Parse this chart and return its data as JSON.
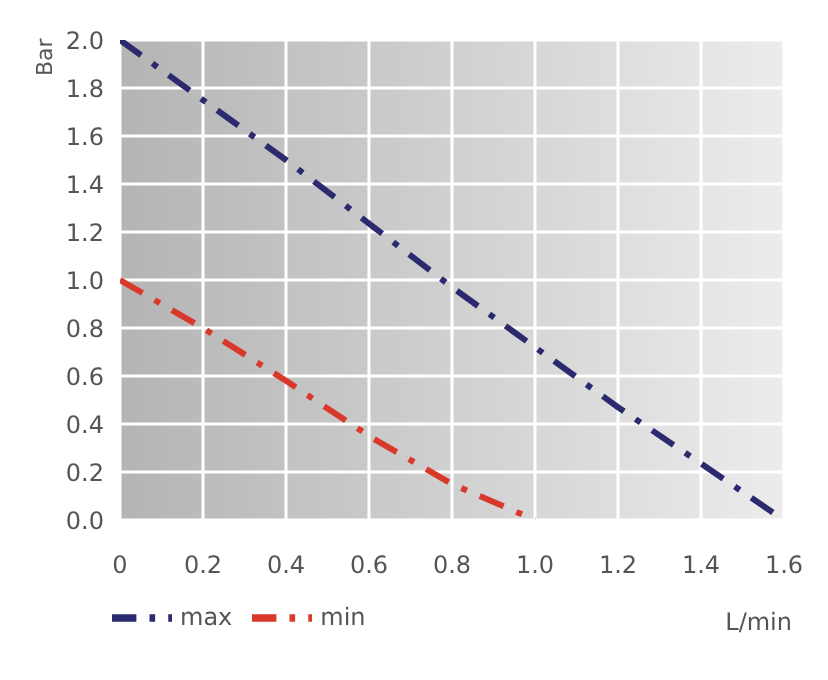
{
  "chart_data": {
    "type": "line",
    "xlabel": "L/min",
    "ylabel": "Bar",
    "series": [
      {
        "name": "max",
        "color": "#2b2a6e",
        "x": [
          0,
          0.4,
          0.8,
          1.2,
          1.6
        ],
        "values": [
          2.0,
          1.5,
          0.97,
          0.47,
          0.0
        ]
      },
      {
        "name": "min",
        "color": "#d8392b",
        "x": [
          0,
          0.2,
          0.4,
          0.6,
          0.8,
          1.0
        ],
        "values": [
          1.0,
          0.8,
          0.58,
          0.35,
          0.15,
          0.0
        ]
      }
    ],
    "xlim": [
      0,
      1.6
    ],
    "xticks": [
      0,
      0.2,
      0.4,
      0.6,
      0.8,
      {
        "value": 1,
        "label": "1.0"
      },
      1.2,
      1.4,
      1.6
    ],
    "ylim": [
      0,
      2
    ],
    "yticks": [
      {
        "value": 0,
        "label": "0.0"
      },
      0.2,
      0.4,
      0.6,
      0.8,
      {
        "value": 1,
        "label": "1.0"
      },
      1.2,
      1.4,
      1.6,
      1.8,
      {
        "value": 2,
        "label": "2.0"
      }
    ],
    "grid": true,
    "legend": "bottom left",
    "line_style": "dashed",
    "marker": "none"
  }
}
